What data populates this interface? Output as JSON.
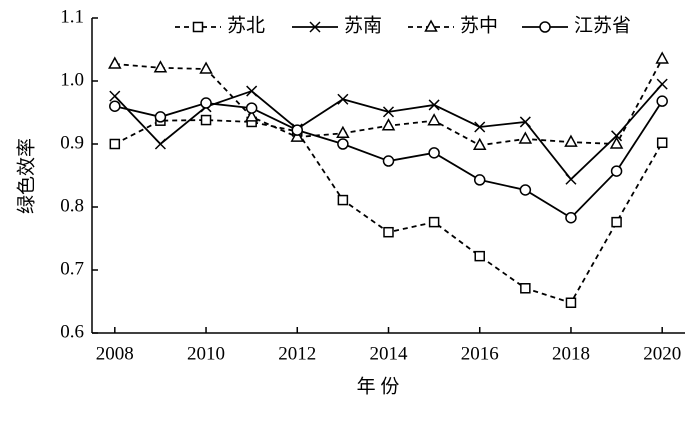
{
  "chart_data": {
    "type": "line",
    "x_label": "年 份",
    "y_label": "绿色效率",
    "x": [
      2008,
      2009,
      2010,
      2011,
      2012,
      2013,
      2014,
      2015,
      2016,
      2017,
      2018,
      2019,
      2020
    ],
    "series": [
      {
        "name": "苏北",
        "color": "#000000",
        "dashed": true,
        "marker": "square",
        "values": [
          0.9,
          0.937,
          0.938,
          0.935,
          0.92,
          0.811,
          0.76,
          0.776,
          0.722,
          0.671,
          0.648,
          0.776,
          0.902
        ]
      },
      {
        "name": "苏南",
        "color": "#000000",
        "dashed": false,
        "marker": "x",
        "values": [
          0.976,
          0.9,
          0.959,
          0.984,
          0.924,
          0.971,
          0.951,
          0.962,
          0.927,
          0.935,
          0.844,
          0.913,
          0.995
        ]
      },
      {
        "name": "苏中",
        "color": "#000000",
        "dashed": true,
        "marker": "triangle",
        "values": [
          1.027,
          1.021,
          1.019,
          0.943,
          0.911,
          0.917,
          0.929,
          0.937,
          0.898,
          0.908,
          0.903,
          0.9,
          1.035
        ]
      },
      {
        "name": "江苏省",
        "color": "#000000",
        "dashed": false,
        "marker": "circle",
        "values": [
          0.96,
          0.943,
          0.965,
          0.957,
          0.922,
          0.9,
          0.873,
          0.886,
          0.843,
          0.827,
          0.783,
          0.857,
          0.968
        ]
      }
    ],
    "xlim": [
      2007.5,
      2020.5
    ],
    "xticks": [
      2008,
      2010,
      2012,
      2014,
      2016,
      2018,
      2020
    ],
    "ylim": [
      0.6,
      1.1
    ],
    "yticks": [
      0.6,
      0.7,
      0.8,
      0.9,
      {
        "value": 1,
        "label": "1.0"
      },
      1.1
    ],
    "grid": false
  }
}
